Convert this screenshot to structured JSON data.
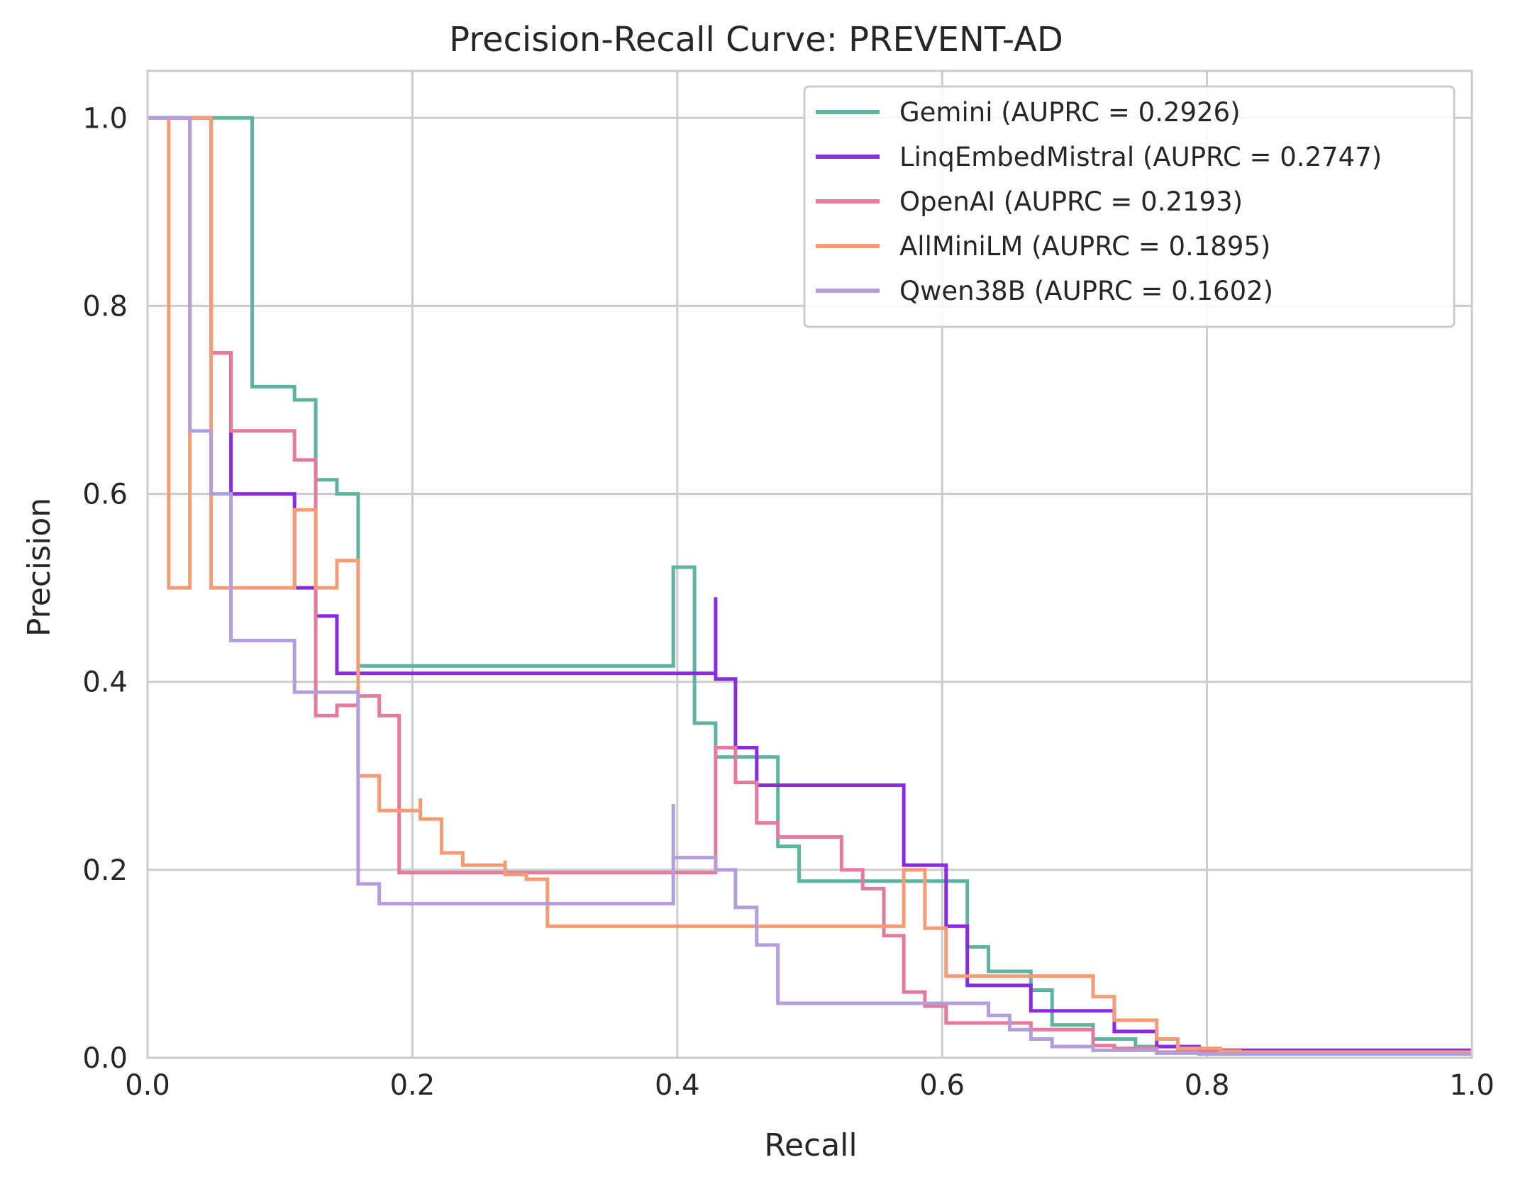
{
  "chart_data": {
    "type": "line",
    "title": "Precision-Recall Curve: PREVENT-AD",
    "xlabel": "Recall",
    "ylabel": "Precision",
    "xlim": [
      0.0,
      1.0
    ],
    "ylim": [
      0.0,
      1.05
    ],
    "xticks": [
      0.0,
      0.2,
      0.4,
      0.6,
      0.8,
      1.0
    ],
    "xtick_labels": [
      "0.0",
      "0.2",
      "0.4",
      "0.6",
      "0.8",
      "1.0"
    ],
    "yticks": [
      0.0,
      0.2,
      0.4,
      0.6,
      0.8,
      1.0
    ],
    "ytick_labels": [
      "0.0",
      "0.2",
      "0.4",
      "0.6",
      "0.8",
      "1.0"
    ],
    "grid": true,
    "legend_position": "upper right",
    "series": [
      {
        "name": "Gemini (AUPRC = 0.2926)",
        "color": "#5fb3a1",
        "x": [
          0.0,
          0.079,
          0.079,
          0.111,
          0.111,
          0.127,
          0.127,
          0.143,
          0.143,
          0.159,
          0.159,
          0.397,
          0.397,
          0.413,
          0.413,
          0.429,
          0.429,
          0.444,
          0.444,
          0.476,
          0.476,
          0.492,
          0.492,
          0.619,
          0.619,
          0.635,
          0.635,
          0.667,
          0.667,
          0.683,
          0.683,
          0.714,
          0.714,
          0.746,
          0.746,
          0.778,
          0.778,
          0.794,
          0.794,
          1.0
        ],
        "y": [
          1.0,
          1.0,
          0.714,
          0.714,
          0.7,
          0.7,
          0.615,
          0.615,
          0.6,
          0.6,
          0.417,
          0.417,
          0.522,
          0.522,
          0.356,
          0.356,
          0.32,
          0.32,
          0.32,
          0.32,
          0.225,
          0.225,
          0.188,
          0.188,
          0.118,
          0.118,
          0.092,
          0.092,
          0.072,
          0.072,
          0.035,
          0.035,
          0.02,
          0.02,
          0.012,
          0.012,
          0.008,
          0.008,
          0.006,
          0.006
        ]
      },
      {
        "name": "LinqEmbedMistral (AUPRC = 0.2747)",
        "color": "#8a2be2",
        "x": [
          0.0,
          0.048,
          0.048,
          0.063,
          0.063,
          0.111,
          0.111,
          0.127,
          0.127,
          0.143,
          0.143,
          0.429,
          0.429,
          0.429,
          0.429,
          0.444,
          0.444,
          0.46,
          0.46,
          0.571,
          0.571,
          0.603,
          0.603,
          0.619,
          0.619,
          0.667,
          0.667,
          0.73,
          0.73,
          0.762,
          0.762,
          0.794,
          0.794,
          1.0
        ],
        "y": [
          1.0,
          1.0,
          0.75,
          0.75,
          0.6,
          0.6,
          0.5,
          0.5,
          0.47,
          0.47,
          0.409,
          0.409,
          0.49,
          0.49,
          0.403,
          0.403,
          0.33,
          0.33,
          0.29,
          0.29,
          0.205,
          0.205,
          0.14,
          0.14,
          0.077,
          0.077,
          0.05,
          0.05,
          0.028,
          0.028,
          0.012,
          0.012,
          0.008,
          0.008
        ]
      },
      {
        "name": "OpenAI (AUPRC = 0.2193)",
        "color": "#e47a9c",
        "x": [
          0.0,
          0.048,
          0.048,
          0.063,
          0.063,
          0.111,
          0.111,
          0.127,
          0.127,
          0.143,
          0.143,
          0.159,
          0.159,
          0.175,
          0.175,
          0.19,
          0.19,
          0.429,
          0.429,
          0.429,
          0.429,
          0.444,
          0.444,
          0.46,
          0.46,
          0.476,
          0.476,
          0.524,
          0.524,
          0.54,
          0.54,
          0.556,
          0.556,
          0.571,
          0.571,
          0.587,
          0.587,
          0.603,
          0.603,
          0.667,
          0.667,
          0.714,
          0.714,
          0.73,
          0.73,
          0.762,
          0.762,
          1.0
        ],
        "y": [
          1.0,
          1.0,
          0.75,
          0.75,
          0.667,
          0.667,
          0.636,
          0.636,
          0.364,
          0.364,
          0.375,
          0.375,
          0.385,
          0.385,
          0.364,
          0.364,
          0.197,
          0.197,
          0.197,
          0.197,
          0.33,
          0.33,
          0.293,
          0.293,
          0.25,
          0.25,
          0.235,
          0.235,
          0.2,
          0.2,
          0.18,
          0.18,
          0.13,
          0.13,
          0.07,
          0.07,
          0.055,
          0.055,
          0.037,
          0.037,
          0.03,
          0.03,
          0.013,
          0.013,
          0.01,
          0.01,
          0.006,
          0.006
        ]
      },
      {
        "name": "AllMiniLM (AUPRC = 0.1895)",
        "color": "#f49c75",
        "x": [
          0.0,
          0.016,
          0.016,
          0.032,
          0.032,
          0.048,
          0.048,
          0.111,
          0.111,
          0.127,
          0.127,
          0.143,
          0.143,
          0.159,
          0.159,
          0.175,
          0.175,
          0.19,
          0.19,
          0.206,
          0.206,
          0.206,
          0.206,
          0.222,
          0.222,
          0.238,
          0.238,
          0.27,
          0.27,
          0.27,
          0.27,
          0.286,
          0.286,
          0.302,
          0.302,
          0.317,
          0.317,
          0.571,
          0.571,
          0.587,
          0.587,
          0.603,
          0.603,
          0.714,
          0.714,
          0.73,
          0.73,
          0.762,
          0.762,
          0.778,
          0.778,
          0.81,
          0.81,
          0.825,
          0.825,
          1.0
        ],
        "y": [
          1.0,
          1.0,
          0.5,
          0.5,
          1.0,
          1.0,
          0.5,
          0.5,
          0.583,
          0.583,
          0.5,
          0.5,
          0.529,
          0.529,
          0.3,
          0.3,
          0.263,
          0.263,
          0.263,
          0.263,
          0.276,
          0.276,
          0.254,
          0.254,
          0.218,
          0.218,
          0.205,
          0.205,
          0.21,
          0.21,
          0.195,
          0.195,
          0.19,
          0.19,
          0.14,
          0.14,
          0.14,
          0.14,
          0.2,
          0.2,
          0.138,
          0.138,
          0.087,
          0.087,
          0.065,
          0.065,
          0.04,
          0.04,
          0.02,
          0.02,
          0.01,
          0.01,
          0.007,
          0.007,
          0.006,
          0.006
        ]
      },
      {
        "name": "Qwen38B (AUPRC = 0.1602)",
        "color": "#b39ddb",
        "x": [
          0.0,
          0.032,
          0.032,
          0.048,
          0.048,
          0.063,
          0.063,
          0.111,
          0.111,
          0.159,
          0.159,
          0.175,
          0.175,
          0.397,
          0.397,
          0.397,
          0.397,
          0.429,
          0.429,
          0.444,
          0.444,
          0.46,
          0.46,
          0.476,
          0.476,
          0.635,
          0.635,
          0.651,
          0.651,
          0.667,
          0.667,
          0.683,
          0.683,
          0.714,
          0.714,
          0.762,
          0.762,
          0.794,
          0.794,
          1.0
        ],
        "y": [
          1.0,
          1.0,
          0.667,
          0.667,
          0.6,
          0.6,
          0.444,
          0.444,
          0.389,
          0.389,
          0.185,
          0.185,
          0.164,
          0.164,
          0.27,
          0.27,
          0.213,
          0.213,
          0.2,
          0.2,
          0.16,
          0.16,
          0.12,
          0.12,
          0.058,
          0.058,
          0.045,
          0.045,
          0.03,
          0.03,
          0.02,
          0.02,
          0.012,
          0.012,
          0.008,
          0.008,
          0.005,
          0.005,
          0.004,
          0.004
        ]
      }
    ]
  }
}
